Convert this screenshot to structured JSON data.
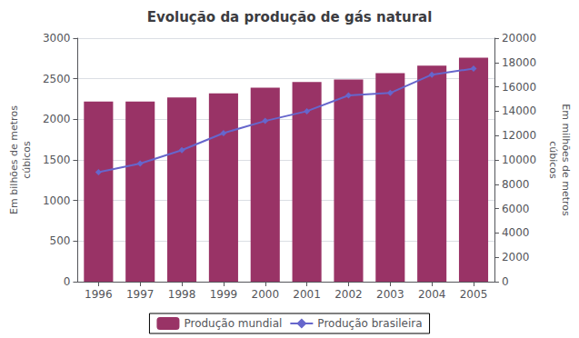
{
  "chart_data": {
    "type": "bar",
    "title": "Evolução da produção de gás natural",
    "categories": [
      "1996",
      "1997",
      "1998",
      "1999",
      "2000",
      "2001",
      "2002",
      "2003",
      "2004",
      "2005"
    ],
    "series": [
      {
        "name": "Produção mundial",
        "type": "bar",
        "color": "#993366",
        "values": [
          2220,
          2220,
          2270,
          2320,
          2390,
          2460,
          2490,
          2570,
          2660,
          2760
        ]
      },
      {
        "name": "Produção brasileira",
        "type": "line",
        "color": "#6666cc",
        "marker": "diamond",
        "axis": "y2",
        "values": [
          9000,
          9700,
          10800,
          12200,
          13200,
          14000,
          15300,
          15500,
          17000,
          17500
        ]
      }
    ],
    "ylabel": "Em bilhões de metros\ncúbicos",
    "y2label": "Em milhões de metros\ncúbicos",
    "ylim": [
      0,
      3000
    ],
    "yticks": [
      0,
      500,
      1000,
      1500,
      2000,
      2500,
      3000
    ],
    "y2lim": [
      0,
      20000
    ],
    "y2ticks": [
      0,
      2000,
      4000,
      6000,
      8000,
      10000,
      12000,
      14000,
      16000,
      18000,
      20000
    ],
    "grid": true,
    "legend": "bottom"
  }
}
